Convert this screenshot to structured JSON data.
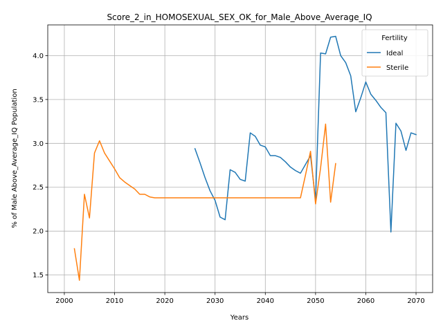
{
  "chart_data": {
    "type": "line",
    "title": "Score_2_in_HOMOSEXUAL_SEX_OK_for_Male_Above_Average_IQ",
    "xlabel": "Years",
    "ylabel": "% of Male Above_Average_IQ Population",
    "xlim": [
      2000,
      2070
    ],
    "ylim": [
      1.3,
      4.35
    ],
    "xticks": [
      2000,
      2010,
      2020,
      2030,
      2040,
      2050,
      2060,
      2070
    ],
    "yticks": [
      1.5,
      2.0,
      2.5,
      3.0,
      3.5,
      4.0
    ],
    "grid": true,
    "legend": {
      "title": "Fertility",
      "placement": "top-right",
      "entries": [
        "Ideal",
        "Sterile"
      ]
    },
    "series": [
      {
        "name": "Ideal",
        "color": "#1f77b4",
        "x": [
          2026,
          2027,
          2028,
          2029,
          2030,
          2031,
          2032,
          2033,
          2034,
          2035,
          2036,
          2037,
          2038,
          2039,
          2040,
          2041,
          2042,
          2043,
          2044,
          2045,
          2046,
          2047,
          2048,
          2049,
          2050,
          2051,
          2052,
          2053,
          2054,
          2055,
          2056,
          2057,
          2058,
          2059,
          2060,
          2061,
          2062,
          2063,
          2064,
          2065,
          2066,
          2067,
          2068,
          2069,
          2070
        ],
        "values": [
          2.94,
          2.78,
          2.61,
          2.46,
          2.35,
          2.16,
          2.13,
          2.7,
          2.67,
          2.59,
          2.57,
          3.12,
          3.08,
          2.98,
          2.96,
          2.86,
          2.86,
          2.84,
          2.79,
          2.73,
          2.69,
          2.66,
          2.76,
          2.86,
          2.35,
          4.03,
          4.02,
          4.21,
          4.22,
          4.0,
          3.92,
          3.77,
          3.36,
          3.52,
          3.7,
          3.56,
          3.49,
          3.41,
          3.35,
          1.99,
          3.23,
          3.14,
          2.92,
          3.12,
          3.1
        ]
      },
      {
        "name": "Sterile",
        "color": "#ff7f0e",
        "x": [
          2002,
          2003,
          2004,
          2005,
          2006,
          2007,
          2008,
          2009,
          2010,
          2011,
          2012,
          2013,
          2014,
          2015,
          2016,
          2017,
          2018,
          2019,
          2020,
          2021,
          2022,
          2023,
          2024,
          2025,
          2026,
          2027,
          2028,
          2029,
          2030,
          2031,
          2032,
          2033,
          2034,
          2035,
          2036,
          2037,
          2038,
          2039,
          2040,
          2041,
          2042,
          2043,
          2044,
          2045,
          2046,
          2047,
          2048,
          2049,
          2050,
          2051,
          2052,
          2053,
          2054
        ],
        "values": [
          1.8,
          1.44,
          2.42,
          2.15,
          2.89,
          3.03,
          2.89,
          2.8,
          2.71,
          2.61,
          2.56,
          2.52,
          2.48,
          2.42,
          2.42,
          2.39,
          2.38,
          2.38,
          2.38,
          2.38,
          2.38,
          2.38,
          2.38,
          2.38,
          2.38,
          2.38,
          2.38,
          2.38,
          2.38,
          2.38,
          2.38,
          2.38,
          2.38,
          2.38,
          2.38,
          2.38,
          2.38,
          2.38,
          2.38,
          2.38,
          2.38,
          2.38,
          2.38,
          2.38,
          2.38,
          2.38,
          2.64,
          2.91,
          2.31,
          2.72,
          3.22,
          2.33,
          2.77
        ]
      }
    ]
  }
}
